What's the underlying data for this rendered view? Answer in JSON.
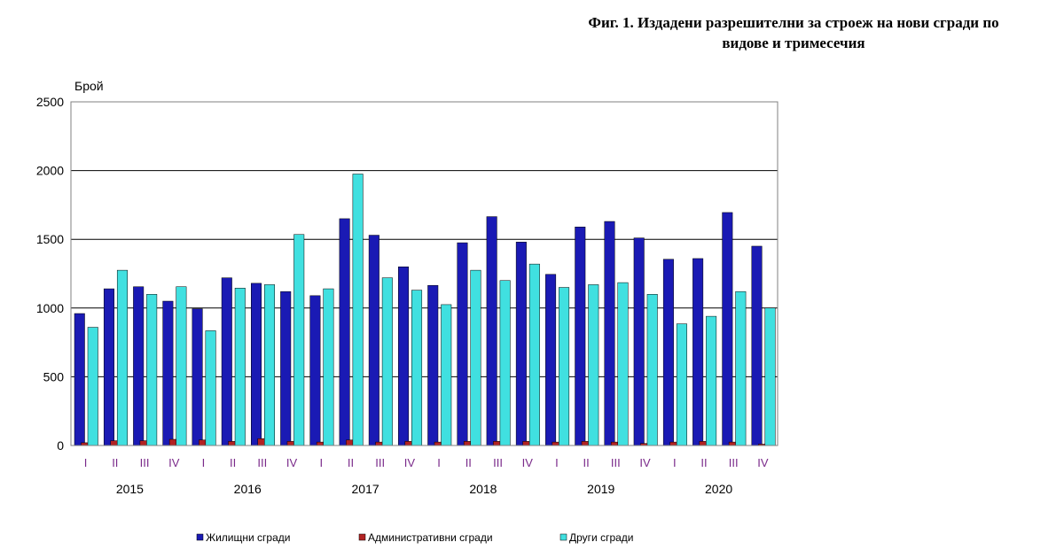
{
  "chart_data": {
    "type": "bar",
    "title_lines": [
      "Фиг. 1. Издадени разрешителни за строеж на нови сгради по",
      "видове и тримесечия"
    ],
    "ylabel": "Брой",
    "ylim": [
      0,
      2500
    ],
    "yticks": [
      0,
      500,
      1000,
      1500,
      2000,
      2500
    ],
    "grid": true,
    "legend_position": "bottom",
    "years": [
      "2015",
      "2016",
      "2017",
      "2018",
      "2019",
      "2020"
    ],
    "categories": [
      "I",
      "II",
      "III",
      "IV",
      "I",
      "II",
      "III",
      "IV",
      "I",
      "II",
      "III",
      "IV",
      "I",
      "II",
      "III",
      "IV",
      "I",
      "II",
      "III",
      "IV",
      "I",
      "II",
      "III",
      "IV"
    ],
    "series": [
      {
        "name": "Жилищни сгради",
        "color": "#1a1ab4",
        "values": [
          960,
          1140,
          1155,
          1050,
          995,
          1220,
          1180,
          1120,
          1090,
          1650,
          1530,
          1300,
          1165,
          1475,
          1665,
          1480,
          1245,
          1590,
          1630,
          1510,
          1355,
          1360,
          1695,
          1450
        ]
      },
      {
        "name": "Административни сгради",
        "color": "#b22222",
        "values": [
          20,
          35,
          35,
          45,
          40,
          30,
          50,
          30,
          25,
          40,
          25,
          30,
          25,
          30,
          30,
          30,
          25,
          30,
          25,
          15,
          25,
          30,
          25,
          10
        ]
      },
      {
        "name": "Други сгради",
        "color": "#40e0e0",
        "values": [
          860,
          1275,
          1100,
          1155,
          835,
          1145,
          1170,
          1535,
          1140,
          1975,
          1220,
          1130,
          1025,
          1275,
          1200,
          1320,
          1150,
          1170,
          1185,
          1100,
          885,
          940,
          1120,
          1000
        ]
      }
    ]
  }
}
